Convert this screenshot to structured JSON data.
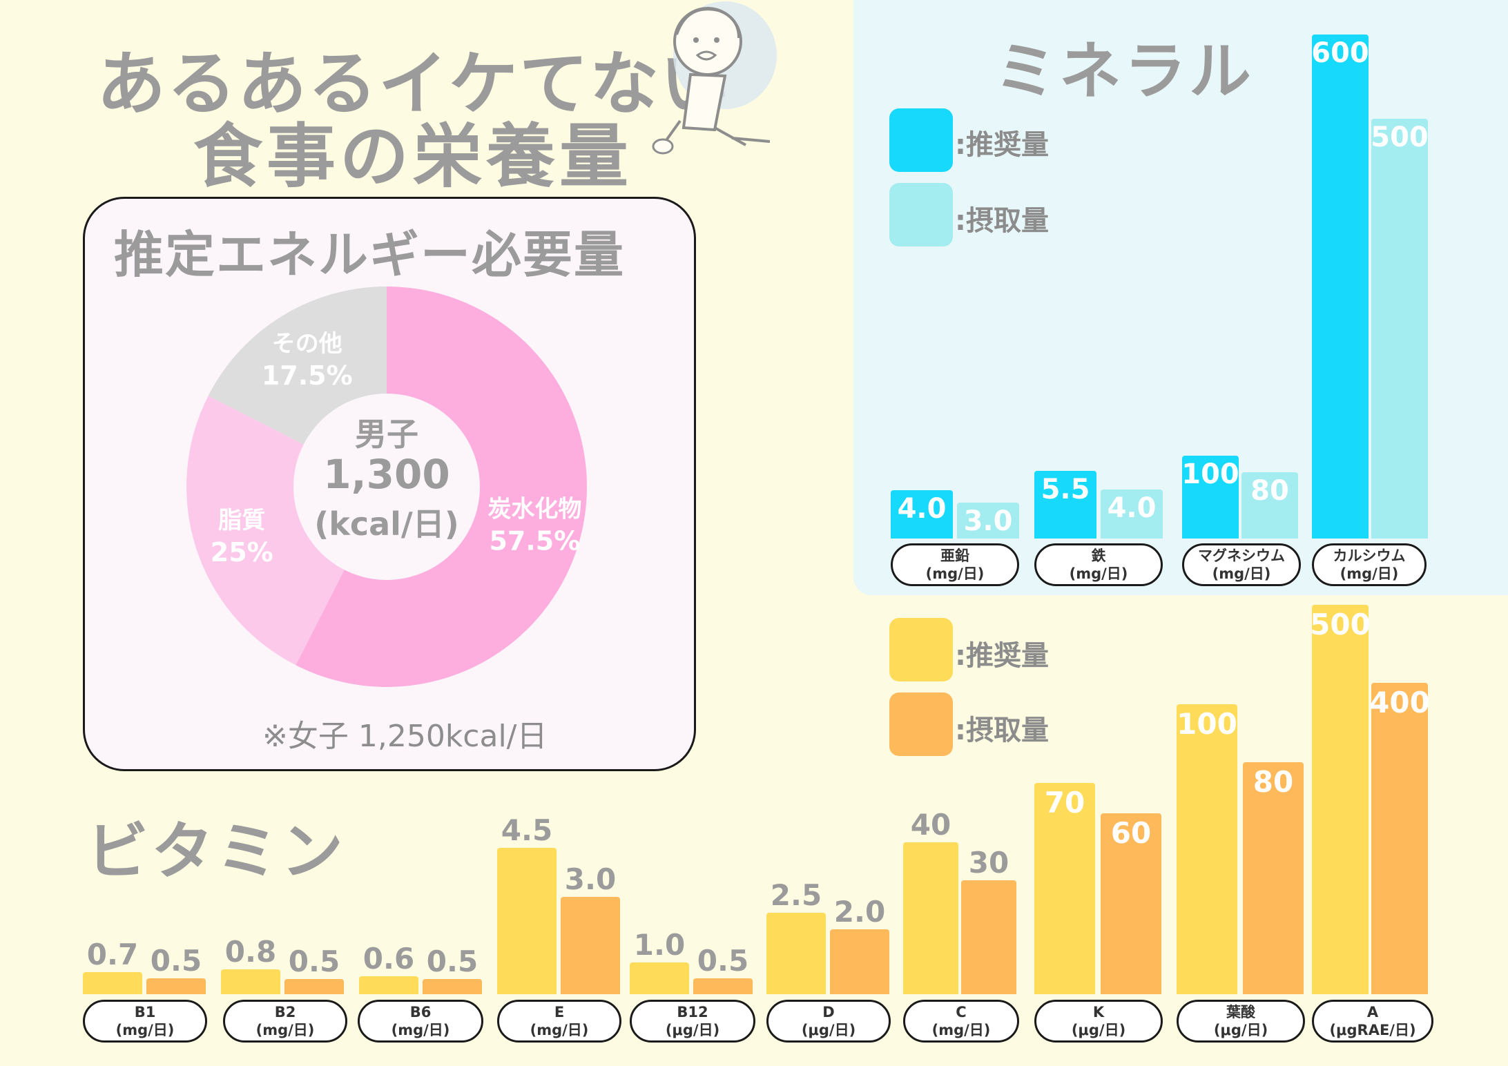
{
  "title": {
    "line1": "あるあるイケてない",
    "line2": "食事の栄養量"
  },
  "colors": {
    "mineral_recommended": "#17d9fb",
    "mineral_intake": "#a3ecf0",
    "vitamin_recommended": "#fedc5a",
    "vitamin_intake": "#fdb95a",
    "carb": "#fdaedf",
    "fat": "#fcc9ea",
    "other": "#dddddd"
  },
  "energy": {
    "title": "推定エネルギー必要量",
    "center_line1": "男子",
    "center_line2": "1,300",
    "center_line3": "(kcal/日)",
    "note": "※女子 1,250kcal/日"
  },
  "mineral": {
    "title": "ミネラル",
    "legend_recommended": ":推奨量",
    "legend_intake": ":摂取量"
  },
  "vitamin": {
    "title": "ビタミン",
    "legend_recommended": ":推奨量",
    "legend_intake": ":摂取量"
  },
  "chart_data": [
    {
      "type": "pie",
      "title": "推定エネルギー必要量",
      "slices": [
        {
          "label": "炭水化物",
          "pct_label": "57.5%",
          "value": 57.5
        },
        {
          "label": "脂質",
          "pct_label": "25%",
          "value": 25
        },
        {
          "label": "その他",
          "pct_label": "17.5%",
          "value": 17.5
        }
      ]
    },
    {
      "type": "bar",
      "title": "ミネラル",
      "categories": [
        {
          "name": "亜鉛",
          "unit": "(mg/日)"
        },
        {
          "name": "鉄",
          "unit": "(mg/日)"
        },
        {
          "name": "マグネシウム",
          "unit": "(mg/日)"
        },
        {
          "name": "カルシウム",
          "unit": "(mg/日)"
        }
      ],
      "series": [
        {
          "name": "推奨量",
          "values": [
            4.0,
            5.5,
            100,
            600
          ],
          "labels": [
            "4.0",
            "5.5",
            "100",
            "600"
          ]
        },
        {
          "name": "摂取量",
          "values": [
            3.0,
            4.0,
            80,
            500
          ],
          "labels": [
            "3.0",
            "4.0",
            "80",
            "500"
          ]
        }
      ]
    },
    {
      "type": "bar",
      "title": "ビタミン",
      "categories": [
        {
          "name": "B1",
          "unit": "(mg/日)"
        },
        {
          "name": "B2",
          "unit": "(mg/日)"
        },
        {
          "name": "B6",
          "unit": "(mg/日)"
        },
        {
          "name": "E",
          "unit": "(mg/日)"
        },
        {
          "name": "B12",
          "unit": "(μg/日)"
        },
        {
          "name": "D",
          "unit": "(μg/日)"
        },
        {
          "name": "C",
          "unit": "(mg/日)"
        },
        {
          "name": "K",
          "unit": "(μg/日)"
        },
        {
          "name": "葉酸",
          "unit": "(μg/日)"
        },
        {
          "name": "A",
          "unit": "(μgRAE/日)"
        }
      ],
      "series": [
        {
          "name": "推奨量",
          "values": [
            0.7,
            0.8,
            0.6,
            4.5,
            1.0,
            2.5,
            40,
            70,
            100,
            500
          ],
          "labels": [
            "0.7",
            "0.8",
            "0.6",
            "4.5",
            "1.0",
            "2.5",
            "40",
            "70",
            "100",
            "500"
          ]
        },
        {
          "name": "摂取量",
          "values": [
            0.5,
            0.5,
            0.5,
            3.0,
            0.5,
            2.0,
            30,
            60,
            80,
            400
          ],
          "labels": [
            "0.5",
            "0.5",
            "0.5",
            "3.0",
            "0.5",
            "2.0",
            "30",
            "60",
            "80",
            "400"
          ]
        }
      ]
    }
  ]
}
